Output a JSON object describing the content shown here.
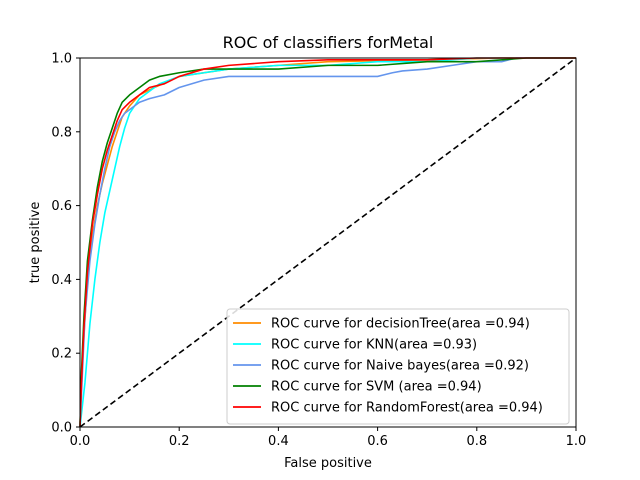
{
  "chart_data": {
    "type": "line",
    "title": "ROC of classifiers forMetal",
    "xlabel": "False positive",
    "ylabel": "true positive",
    "xlim": [
      0.0,
      1.0
    ],
    "ylim": [
      0.0,
      1.0
    ],
    "xticks": [
      "0.0",
      "0.2",
      "0.4",
      "0.6",
      "0.8",
      "1.0"
    ],
    "yticks": [
      "0.0",
      "0.2",
      "0.4",
      "0.6",
      "0.8",
      "1.0"
    ],
    "grid": false,
    "legend_position": "lower-right",
    "series": [
      {
        "name": "ROC curve for decisionTree(area =0.94)",
        "color": "#ff8c00",
        "x": [
          0,
          0.002,
          0.008,
          0.015,
          0.025,
          0.035,
          0.045,
          0.055,
          0.065,
          0.075,
          0.085,
          0.1,
          0.12,
          0.15,
          0.2,
          0.3,
          0.4,
          0.5,
          0.7,
          0.85,
          0.9,
          1.0
        ],
        "y": [
          0,
          0.1,
          0.25,
          0.4,
          0.52,
          0.6,
          0.66,
          0.71,
          0.76,
          0.8,
          0.84,
          0.87,
          0.9,
          0.92,
          0.95,
          0.97,
          0.98,
          0.99,
          0.995,
          1.0,
          1.0,
          1.0
        ]
      },
      {
        "name": "ROC curve for KNN(area =0.93)",
        "color": "#00ffff",
        "x": [
          0,
          0.01,
          0.02,
          0.03,
          0.04,
          0.05,
          0.06,
          0.07,
          0.08,
          0.09,
          0.1,
          0.11,
          0.12,
          0.14,
          0.16,
          0.2,
          0.25,
          0.3,
          0.4,
          0.5,
          0.6,
          0.7,
          0.8,
          1.0
        ],
        "y": [
          0,
          0.12,
          0.28,
          0.4,
          0.5,
          0.58,
          0.64,
          0.7,
          0.76,
          0.81,
          0.85,
          0.87,
          0.89,
          0.91,
          0.93,
          0.95,
          0.96,
          0.97,
          0.98,
          0.98,
          0.99,
          0.99,
          1.0,
          1.0
        ]
      },
      {
        "name": "ROC curve for Naive bayes(area =0.92)",
        "color": "#6495ed",
        "x": [
          0,
          0.005,
          0.01,
          0.02,
          0.03,
          0.04,
          0.05,
          0.06,
          0.07,
          0.08,
          0.09,
          0.1,
          0.12,
          0.14,
          0.17,
          0.2,
          0.25,
          0.3,
          0.4,
          0.5,
          0.6,
          0.63,
          0.65,
          0.7,
          0.75,
          0.8,
          0.85,
          0.88,
          1.0
        ],
        "y": [
          0,
          0.15,
          0.3,
          0.45,
          0.55,
          0.63,
          0.7,
          0.76,
          0.8,
          0.83,
          0.85,
          0.86,
          0.88,
          0.89,
          0.9,
          0.92,
          0.94,
          0.95,
          0.95,
          0.95,
          0.95,
          0.96,
          0.965,
          0.97,
          0.98,
          0.99,
          0.99,
          1.0,
          1.0
        ]
      },
      {
        "name": "ROC curve for SVM (area =0.94)",
        "color": "#008000",
        "x": [
          0,
          0.003,
          0.008,
          0.015,
          0.025,
          0.035,
          0.045,
          0.055,
          0.065,
          0.075,
          0.085,
          0.1,
          0.12,
          0.14,
          0.16,
          0.2,
          0.25,
          0.3,
          0.4,
          0.5,
          0.6,
          0.7,
          0.8,
          0.9,
          1.0
        ],
        "y": [
          0,
          0.15,
          0.3,
          0.45,
          0.56,
          0.65,
          0.72,
          0.77,
          0.81,
          0.85,
          0.88,
          0.9,
          0.92,
          0.94,
          0.95,
          0.96,
          0.97,
          0.97,
          0.97,
          0.98,
          0.98,
          0.99,
          0.99,
          1.0,
          1.0
        ]
      },
      {
        "name": "ROC curve for RandomForest(area =0.94)",
        "color": "#ff0000",
        "x": [
          0,
          0.003,
          0.008,
          0.015,
          0.025,
          0.035,
          0.045,
          0.055,
          0.065,
          0.075,
          0.085,
          0.1,
          0.12,
          0.14,
          0.17,
          0.2,
          0.25,
          0.3,
          0.35,
          0.4,
          0.5,
          0.6,
          0.7,
          0.8,
          0.87,
          1.0
        ],
        "y": [
          0,
          0.12,
          0.27,
          0.42,
          0.55,
          0.63,
          0.7,
          0.75,
          0.79,
          0.83,
          0.86,
          0.88,
          0.9,
          0.92,
          0.93,
          0.95,
          0.97,
          0.98,
          0.985,
          0.99,
          0.995,
          0.995,
          0.995,
          1.0,
          1.0,
          1.0
        ]
      },
      {
        "name": "",
        "color": "#000000",
        "dash": true,
        "x": [
          0,
          1
        ],
        "y": [
          0,
          1
        ]
      }
    ]
  }
}
